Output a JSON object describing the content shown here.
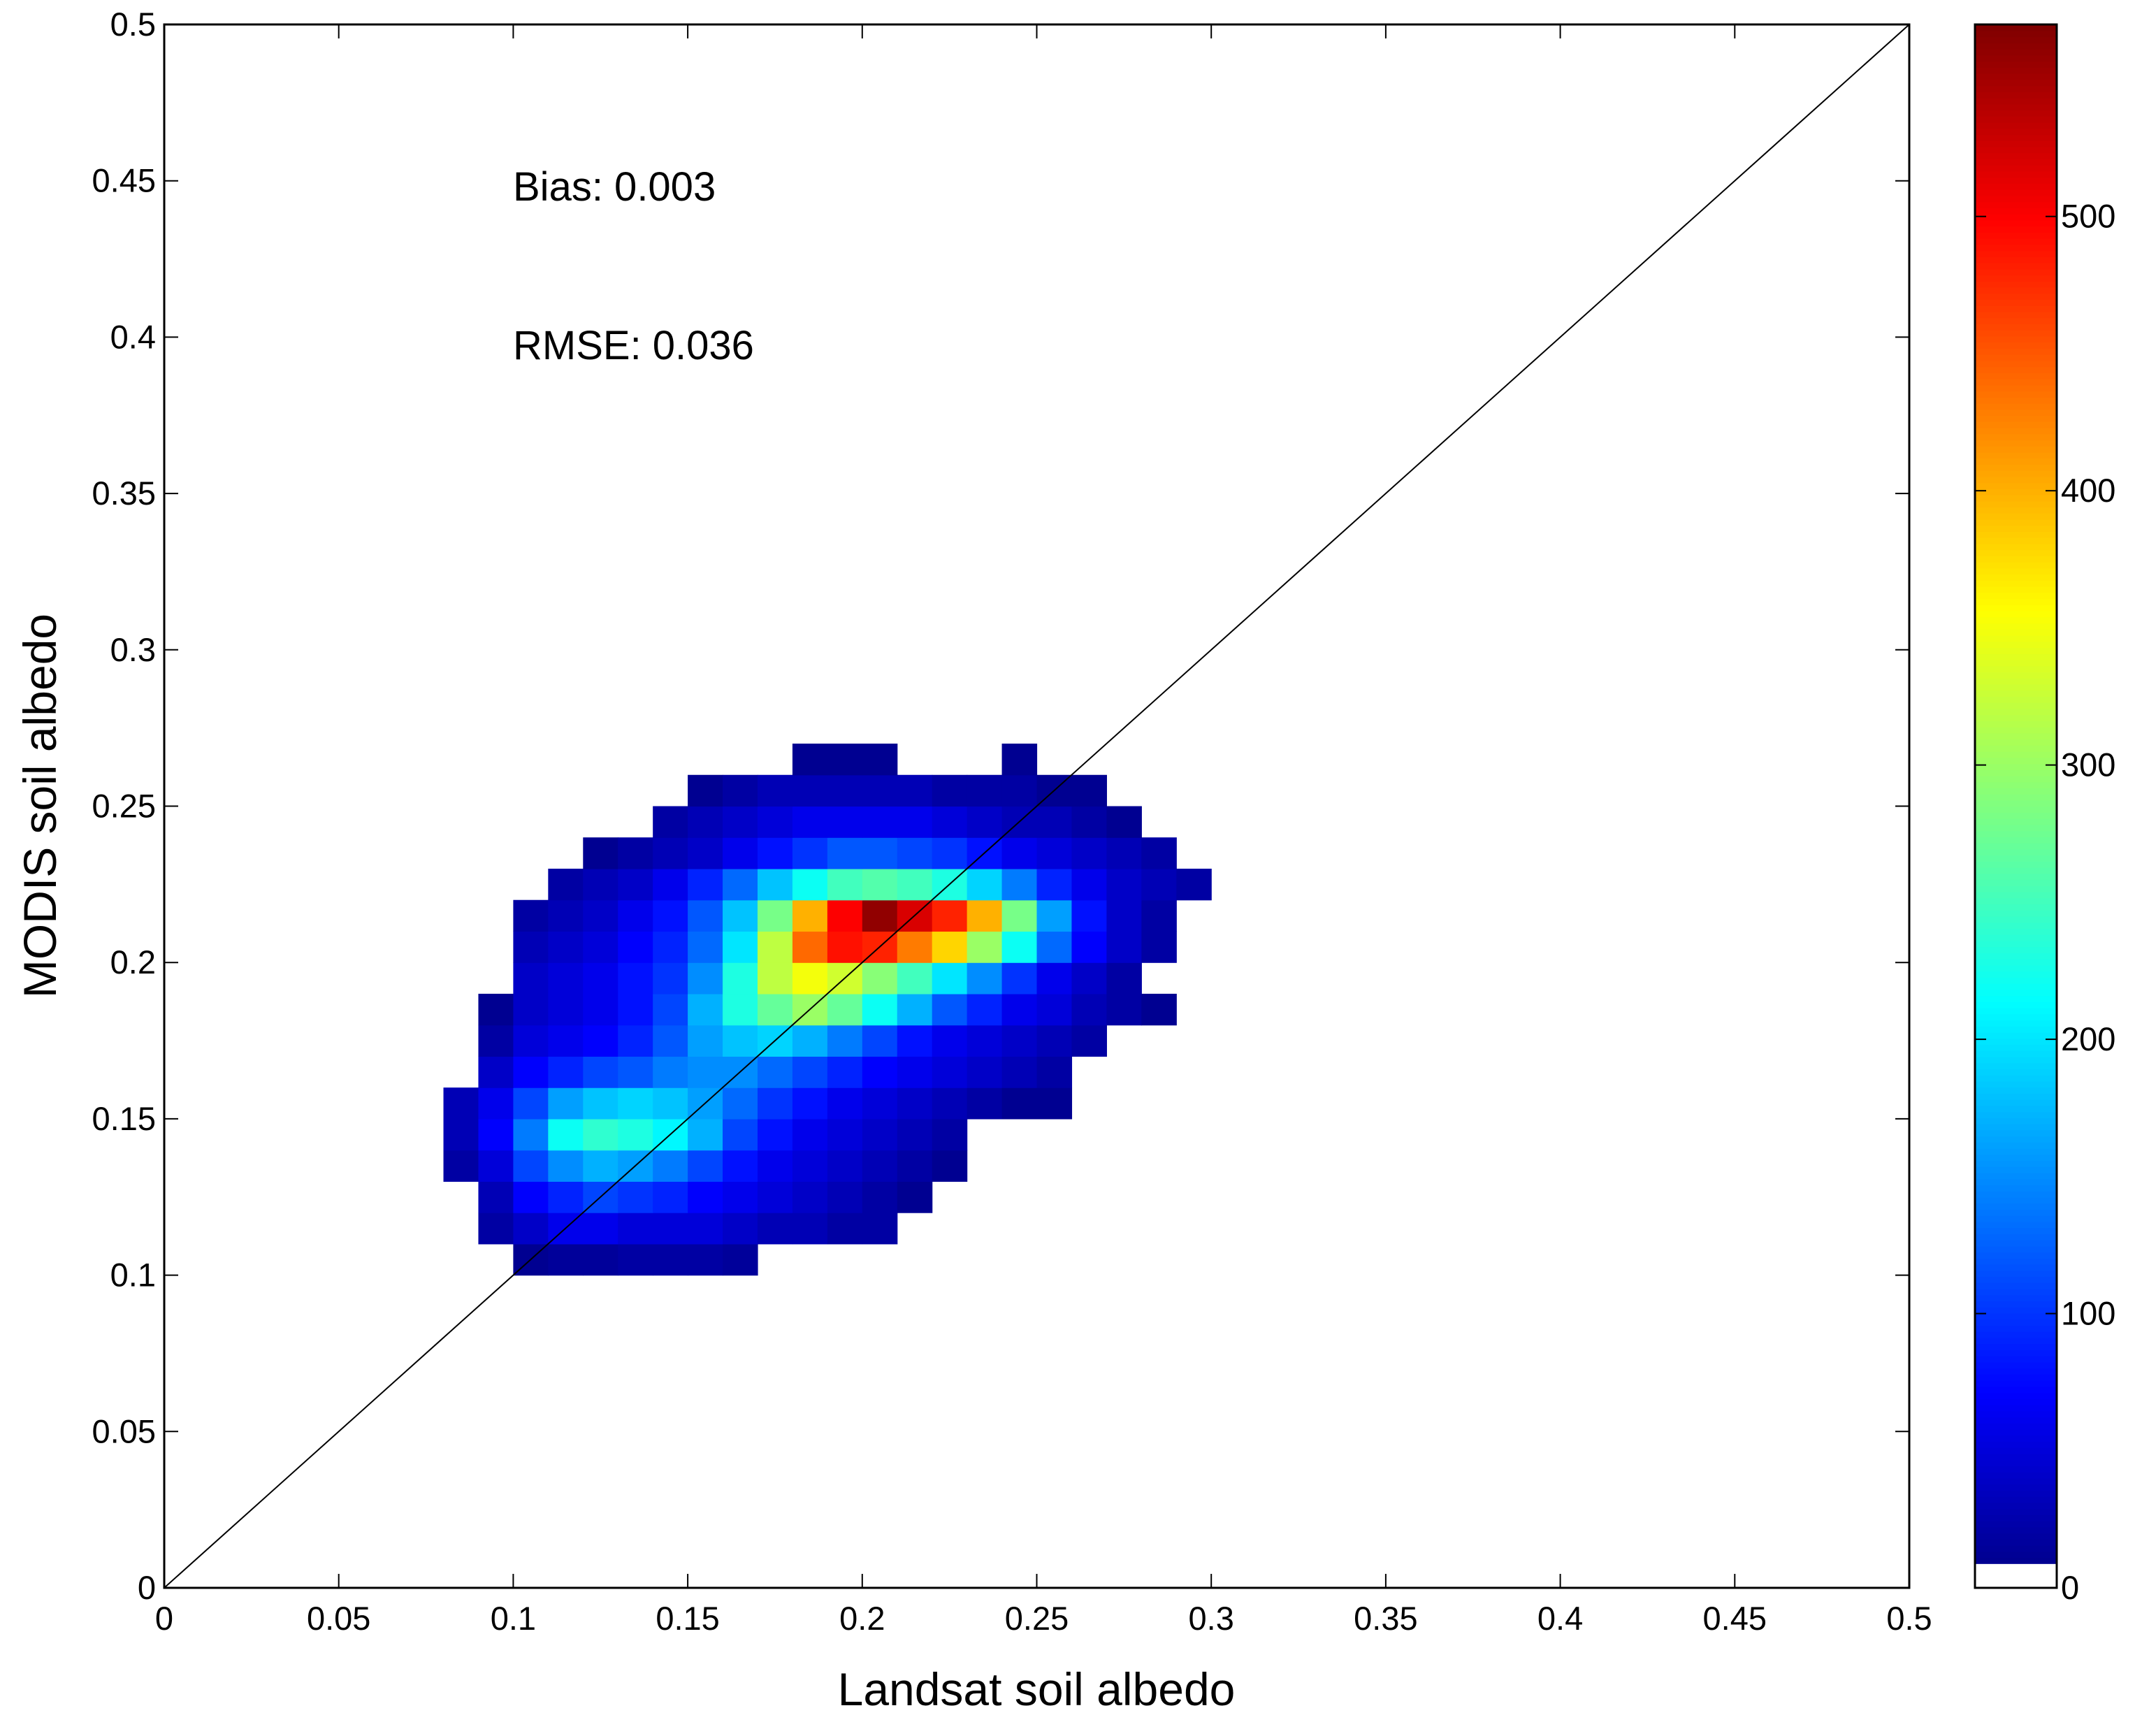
{
  "chart_data": {
    "type": "heatmap",
    "xlabel": "Landsat soil albedo",
    "ylabel": "MODIS soil albedo",
    "annotations": [
      "Bias: 0.003",
      "RMSE: 0.036"
    ],
    "xlim": [
      0,
      0.5
    ],
    "ylim": [
      0,
      0.5
    ],
    "xticks": [
      0,
      0.05,
      0.1,
      0.15,
      0.2,
      0.25,
      0.3,
      0.35,
      0.4,
      0.45,
      0.5
    ],
    "yticks": [
      0,
      0.05,
      0.1,
      0.15,
      0.2,
      0.25,
      0.3,
      0.35,
      0.4,
      0.45,
      0.5
    ],
    "x_bins": [
      0.08,
      0.09,
      0.1,
      0.11,
      0.12,
      0.13,
      0.14,
      0.15,
      0.16,
      0.17,
      0.18,
      0.19,
      0.2,
      0.21,
      0.22,
      0.23,
      0.24,
      0.25,
      0.26,
      0.27,
      0.28,
      0.29,
      0.3
    ],
    "y_bins": [
      0.1,
      0.11,
      0.12,
      0.13,
      0.14,
      0.15,
      0.16,
      0.17,
      0.18,
      0.19,
      0.2,
      0.21,
      0.22,
      0.23,
      0.24,
      0.25,
      0.26,
      0.27
    ],
    "values": [
      [
        null,
        null,
        10,
        15,
        15,
        20,
        20,
        20,
        15,
        null,
        null,
        null,
        null,
        null,
        null,
        null,
        null,
        null,
        null,
        null,
        null,
        null
      ],
      [
        null,
        20,
        40,
        60,
        60,
        50,
        50,
        50,
        40,
        30,
        30,
        20,
        20,
        null,
        null,
        null,
        null,
        null,
        null,
        null,
        null,
        null
      ],
      [
        null,
        30,
        70,
        90,
        110,
        100,
        90,
        70,
        60,
        50,
        40,
        30,
        20,
        10,
        null,
        null,
        null,
        null,
        null,
        null,
        null,
        null
      ],
      [
        20,
        50,
        110,
        150,
        170,
        160,
        140,
        110,
        80,
        60,
        50,
        40,
        30,
        20,
        10,
        null,
        null,
        null,
        null,
        null,
        null,
        null
      ],
      [
        30,
        70,
        140,
        220,
        240,
        230,
        210,
        170,
        110,
        80,
        60,
        50,
        40,
        30,
        20,
        null,
        null,
        null,
        null,
        null,
        null,
        null
      ],
      [
        30,
        60,
        110,
        160,
        180,
        190,
        180,
        160,
        130,
        100,
        80,
        60,
        50,
        40,
        30,
        20,
        10,
        10,
        null,
        null,
        null,
        null
      ],
      [
        null,
        40,
        70,
        90,
        110,
        120,
        140,
        150,
        150,
        130,
        110,
        90,
        70,
        60,
        50,
        40,
        30,
        20,
        null,
        null,
        null,
        null
      ],
      [
        null,
        20,
        50,
        60,
        70,
        90,
        120,
        160,
        180,
        190,
        170,
        140,
        110,
        80,
        60,
        50,
        40,
        30,
        20,
        null,
        null,
        null
      ],
      [
        null,
        10,
        40,
        50,
        60,
        80,
        110,
        170,
        230,
        270,
        300,
        270,
        220,
        170,
        120,
        90,
        60,
        50,
        30,
        20,
        10,
        null
      ],
      [
        null,
        null,
        40,
        50,
        60,
        80,
        100,
        150,
        230,
        320,
        350,
        330,
        290,
        250,
        200,
        150,
        100,
        60,
        40,
        20,
        null,
        null
      ],
      [
        null,
        null,
        30,
        40,
        50,
        70,
        90,
        130,
        200,
        320,
        440,
        490,
        480,
        430,
        380,
        300,
        220,
        130,
        70,
        40,
        20,
        null
      ],
      [
        null,
        null,
        20,
        30,
        40,
        60,
        80,
        120,
        180,
        280,
        400,
        500,
        560,
        520,
        480,
        400,
        280,
        160,
        80,
        40,
        20,
        null
      ],
      [
        null,
        null,
        null,
        20,
        30,
        40,
        60,
        90,
        130,
        180,
        220,
        250,
        260,
        250,
        230,
        190,
        140,
        90,
        60,
        40,
        30,
        20
      ],
      [
        null,
        null,
        null,
        null,
        10,
        20,
        30,
        40,
        60,
        80,
        100,
        120,
        120,
        110,
        100,
        80,
        60,
        50,
        40,
        30,
        20,
        null
      ],
      [
        null,
        null,
        null,
        null,
        null,
        null,
        20,
        30,
        40,
        50,
        60,
        60,
        60,
        60,
        50,
        40,
        30,
        30,
        20,
        10,
        null,
        null
      ],
      [
        null,
        null,
        null,
        null,
        null,
        null,
        null,
        10,
        20,
        30,
        30,
        30,
        30,
        30,
        20,
        20,
        20,
        10,
        10,
        null,
        null,
        null
      ],
      [
        null,
        null,
        null,
        null,
        null,
        null,
        null,
        null,
        null,
        null,
        10,
        10,
        10,
        null,
        null,
        null,
        10,
        null,
        null,
        null,
        null,
        null
      ]
    ],
    "colorbar": {
      "colormap": "jet",
      "lim": [
        0,
        570
      ],
      "ticks": [
        0,
        100,
        200,
        300,
        400,
        500
      ]
    }
  }
}
